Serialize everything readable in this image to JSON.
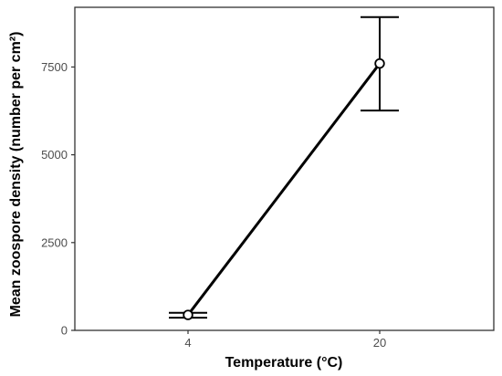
{
  "chart_data": {
    "type": "line",
    "xlabel": "Temperature (°C)",
    "ylabel": "Mean zoospore density (number per cm²)",
    "categories": [
      "4",
      "20"
    ],
    "series": [
      {
        "values": [
          440,
          7600
        ],
        "error_low": [
          360,
          6260
        ],
        "error_high": [
          500,
          8920
        ]
      }
    ],
    "ylim": [
      0,
      9200
    ],
    "yticks": [
      0,
      2500,
      5000,
      7500
    ],
    "ytick_labels": [
      "0",
      "2500",
      "5000",
      "7500"
    ],
    "grid": false,
    "legend": "none",
    "colors": {
      "line": "#000000",
      "frame": "#333333",
      "tick_text": "#4d4d4d"
    },
    "marker": "open-circle"
  }
}
